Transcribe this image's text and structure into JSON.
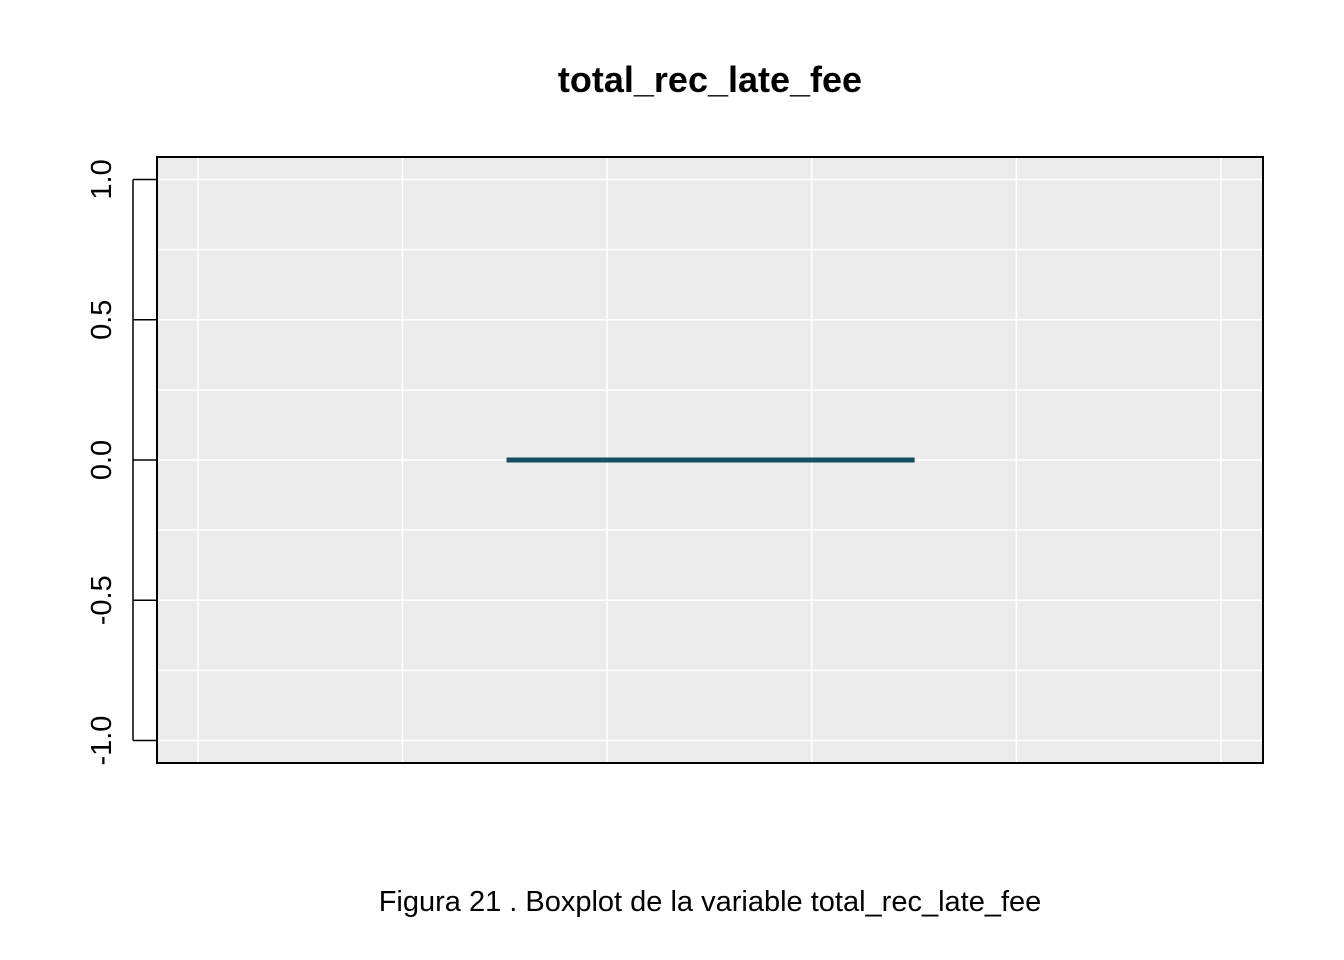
{
  "chart_data": {
    "type": "boxplot",
    "title": "total_rec_late_fee",
    "xlabel": "",
    "ylabel": "",
    "ylim": [
      -1.08,
      1.08
    ],
    "yticks": [
      -1.0,
      -0.5,
      0.0,
      0.5,
      1.0
    ],
    "ytick_labels": [
      "-1.0",
      "-0.5",
      "0.0",
      "0.5",
      "1.0"
    ],
    "grid": true,
    "box": {
      "min": 0.0,
      "q1": 0.0,
      "median": 0.0,
      "q3": 0.0,
      "max": 0.0
    }
  },
  "caption": "Figura  21 . Boxplot de la variable  total_rec_late_fee",
  "colors": {
    "panel_background": "#ebebeb",
    "grid": "#ffffff",
    "box": "#164f5e",
    "frame": "#000000"
  }
}
